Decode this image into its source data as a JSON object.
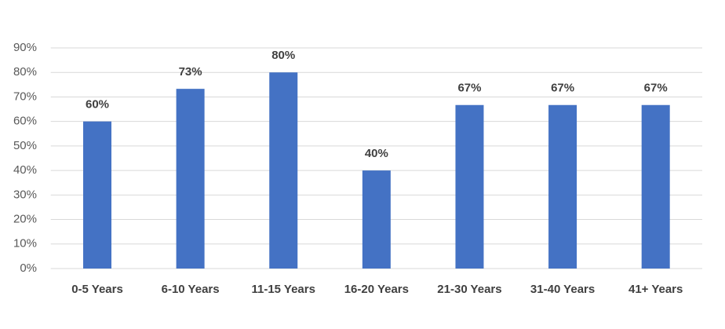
{
  "chart_data": {
    "type": "bar",
    "categories": [
      "0-5 Years",
      "6-10 Years",
      "11-15 Years",
      "16-20 Years",
      "21-30 Years",
      "31-40 Years",
      "41+ Years"
    ],
    "values": [
      60,
      73.3,
      80,
      40,
      66.7,
      66.7,
      66.7
    ],
    "value_labels": [
      "60%",
      "73%",
      "80%",
      "40%",
      "67%",
      "67%",
      "67%"
    ],
    "color": "#4472c4",
    "ylim": [
      0,
      90
    ],
    "yticks": [
      {
        "value": 0,
        "label": "0%"
      },
      {
        "value": 10,
        "label": "10%"
      },
      {
        "value": 20,
        "label": "20%"
      },
      {
        "value": 30,
        "label": "30%"
      },
      {
        "value": 40,
        "label": "40%"
      },
      {
        "value": 50,
        "label": "50%"
      },
      {
        "value": 60,
        "label": "60%"
      },
      {
        "value": 70,
        "label": "70%"
      },
      {
        "value": 80,
        "label": "80%"
      },
      {
        "value": 90,
        "label": "90%"
      }
    ],
    "grid": true
  }
}
